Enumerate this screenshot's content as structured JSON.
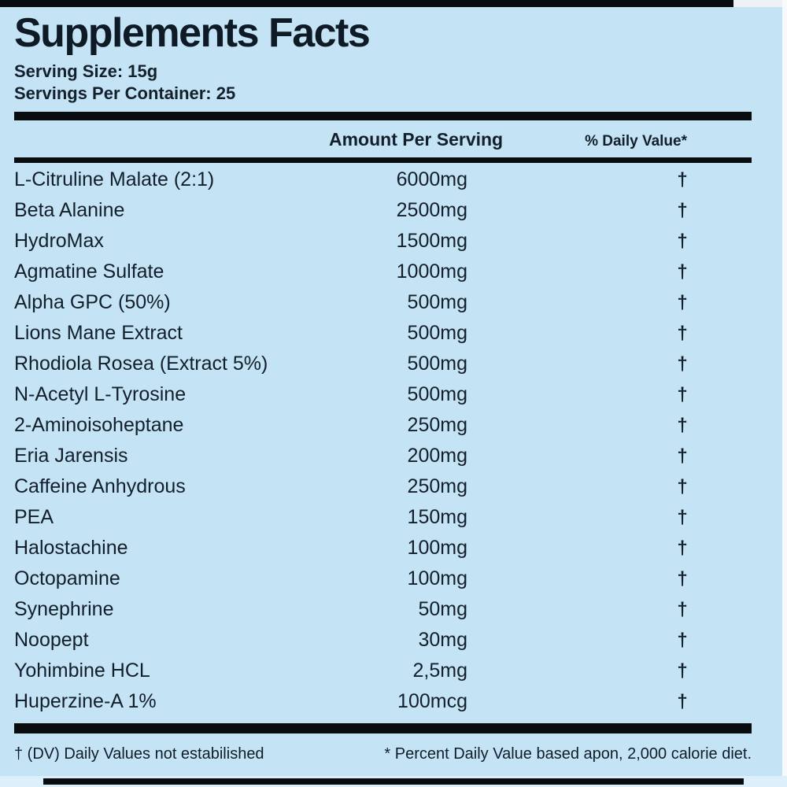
{
  "label": {
    "title": "Supplements Facts",
    "serving_size": "Serving Size: 15g",
    "servings_per_container": "Servings Per Container: 25",
    "columns": {
      "amount": "Amount Per Serving",
      "daily_value": "% Daily Value*"
    },
    "rows": [
      {
        "name": "L-Citruline Malate (2:1)",
        "amount": "6000mg",
        "daily_value": "†"
      },
      {
        "name": "Beta Alanine",
        "amount": "2500mg",
        "daily_value": "†"
      },
      {
        "name": "HydroMax",
        "amount": "1500mg",
        "daily_value": "†"
      },
      {
        "name": "Agmatine Sulfate",
        "amount": "1000mg",
        "daily_value": "†"
      },
      {
        "name": "Alpha GPC (50%)",
        "amount": "500mg",
        "daily_value": "†"
      },
      {
        "name": "Lions Mane Extract",
        "amount": "500mg",
        "daily_value": "†"
      },
      {
        "name": "Rhodiola Rosea (Extract 5%)",
        "amount": "500mg",
        "daily_value": "†"
      },
      {
        "name": "N-Acetyl L-Tyrosine",
        "amount": "500mg",
        "daily_value": "†"
      },
      {
        "name": "2-Aminoisoheptane",
        "amount": "250mg",
        "daily_value": "†"
      },
      {
        "name": "Eria Jarensis",
        "amount": "200mg",
        "daily_value": "†"
      },
      {
        "name": "Caffeine Anhydrous",
        "amount": "250mg",
        "daily_value": "†"
      },
      {
        "name": "PEA",
        "amount": "150mg",
        "daily_value": "†"
      },
      {
        "name": "Halostachine",
        "amount": "100mg",
        "daily_value": "†"
      },
      {
        "name": "Octopamine",
        "amount": "100mg",
        "daily_value": "†"
      },
      {
        "name": "Synephrine",
        "amount": "50mg",
        "daily_value": "†"
      },
      {
        "name": "Noopept",
        "amount": "30mg",
        "daily_value": "†"
      },
      {
        "name": "Yohimbine HCL",
        "amount": "2,5mg",
        "daily_value": "†"
      },
      {
        "name": "Huperzine-A 1%",
        "amount": "100mcg",
        "daily_value": "†"
      }
    ],
    "footnotes": {
      "left": "† (DV) Daily Values not estabilished",
      "right": "* Percent Daily Value based apon, 2,000 calorie diet."
    },
    "colors": {
      "background": "#c4e3f5",
      "text": "#131f2b",
      "rule": "#0a0d10",
      "bottom_strip": "#ddeffa",
      "edge_strip": "#f7fafc"
    }
  }
}
